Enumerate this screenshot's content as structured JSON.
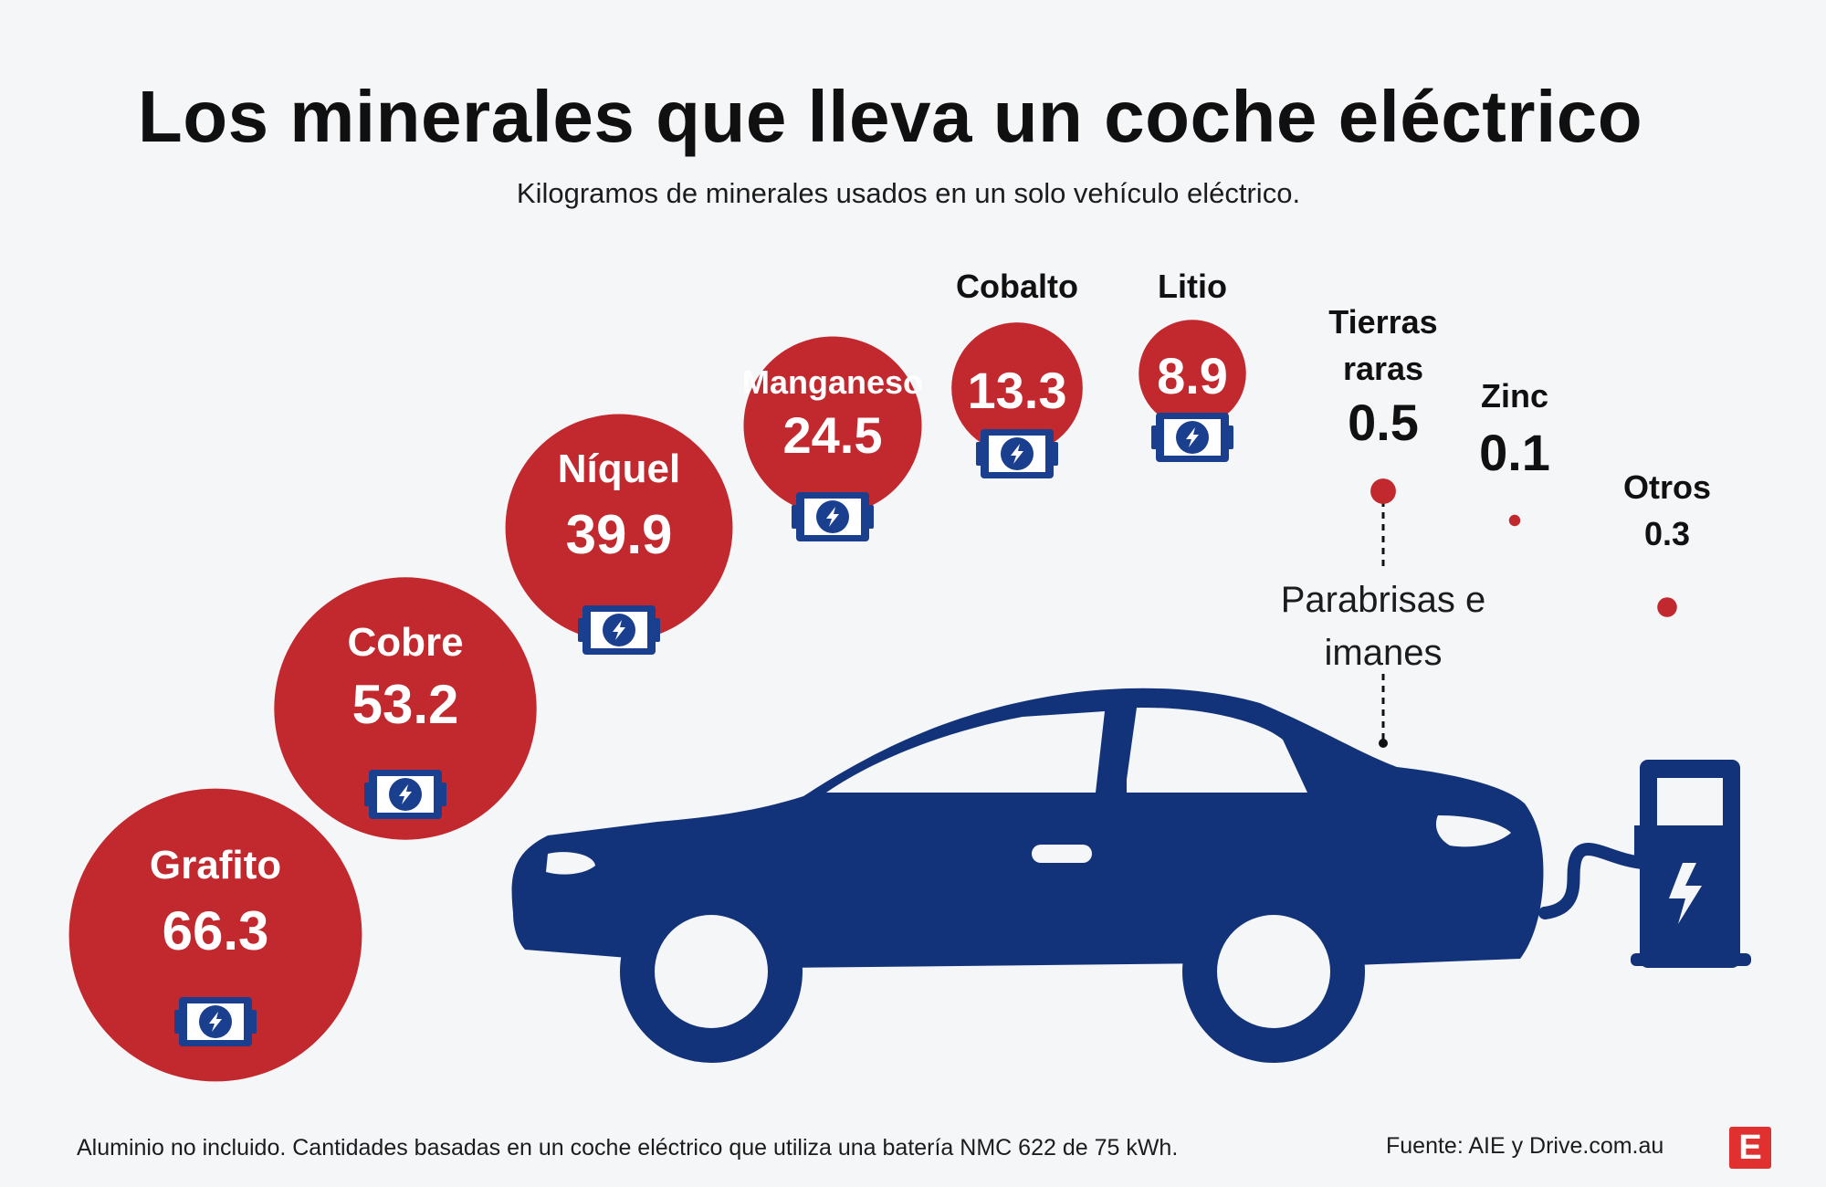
{
  "header": {
    "title": "Los minerales que lleva un coche eléctrico",
    "subtitle": "Kilogramos de minerales usados en un solo vehículo eléctrico."
  },
  "chart_data": {
    "type": "bubble",
    "title": "Los minerales que lleva un coche eléctrico",
    "subtitle": "Kilogramos de minerales usados en un solo vehículo eléctrico.",
    "unit": "kg",
    "categories": [
      "Grafito",
      "Cobre",
      "Níquel",
      "Manganeso",
      "Cobalto",
      "Litio",
      "Tierras raras",
      "Zinc",
      "Otros"
    ],
    "values": [
      66.3,
      53.2,
      39.9,
      24.5,
      13.3,
      8.9,
      0.5,
      0.1,
      0.3
    ],
    "value_labels": [
      "66.3",
      "53.2",
      "39.9",
      "24.5",
      "13.3",
      "8.9",
      "0.5",
      "0.1",
      "0.3"
    ],
    "battery_minerals": [
      "Grafito",
      "Cobre",
      "Níquel",
      "Manganeso",
      "Cobalto",
      "Litio"
    ],
    "annotations": [
      {
        "target": "Tierras raras",
        "text_lines": [
          "Parabrisas e",
          "imanes"
        ]
      }
    ],
    "colors": {
      "bubble": "#c1292e",
      "car": "#12337a",
      "battery_icon": "#1a3f8f",
      "text": "#111111"
    }
  },
  "footer": {
    "note": "Aluminio no incluido. Cantidades basadas en un coche eléctrico que utiliza una batería NMC 622 de 75 kWh.",
    "source": "Fuente: AIE y Drive.com.au",
    "logo_letter": "E"
  }
}
